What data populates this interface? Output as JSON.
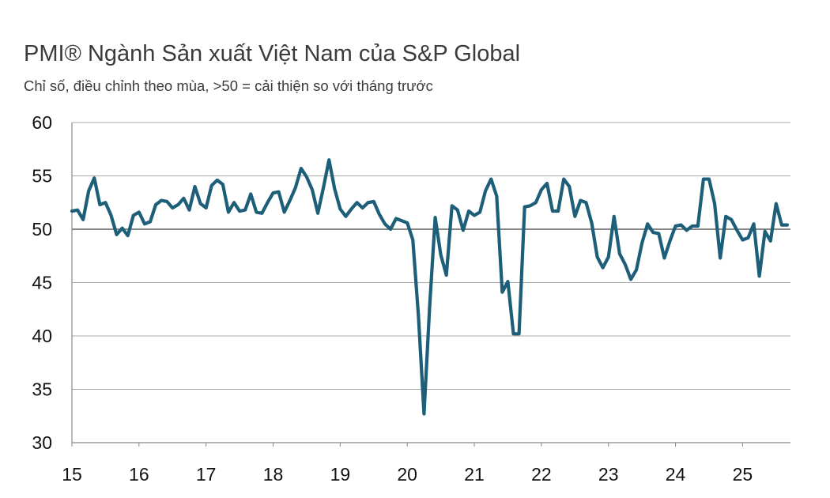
{
  "chart_data": {
    "type": "line",
    "title": "PMI® Ngành Sản xuất Việt Nam của S&P Global",
    "subtitle": "Chỉ số, điều chỉnh theo mùa, >50 = cải thiện so với tháng trước",
    "xlabel": "",
    "ylabel": "",
    "ylim": [
      30,
      60
    ],
    "yticks": [
      "60",
      "55",
      "50",
      "45",
      "40",
      "35",
      "30"
    ],
    "ytick_values": [
      60,
      55,
      50,
      45,
      40,
      35,
      30
    ],
    "xticks": [
      "15",
      "16",
      "17",
      "18",
      "19",
      "20",
      "21",
      "22",
      "23",
      "24",
      "25"
    ],
    "xtick_values": [
      0,
      12,
      24,
      36,
      48,
      60,
      72,
      84,
      96,
      108,
      120
    ],
    "x_start": "2015-01",
    "grid": true,
    "legend": "none",
    "series": [
      {
        "name": "PMI",
        "color": "#1d5e78",
        "values": [
          51.7,
          51.8,
          50.9,
          53.6,
          54.8,
          52.3,
          52.5,
          51.3,
          49.5,
          50.1,
          49.4,
          51.3,
          51.6,
          50.5,
          50.7,
          52.3,
          52.7,
          52.6,
          52.0,
          52.3,
          52.9,
          51.8,
          54.0,
          52.4,
          52.0,
          54.1,
          54.6,
          54.2,
          51.6,
          52.5,
          51.7,
          51.8,
          53.3,
          51.6,
          51.5,
          52.5,
          53.4,
          53.5,
          51.6,
          52.7,
          53.9,
          55.7,
          54.9,
          53.7,
          51.5,
          53.9,
          56.5,
          53.8,
          51.9,
          51.2,
          51.9,
          52.5,
          52.0,
          52.5,
          52.6,
          51.4,
          50.5,
          50.0,
          51.0,
          50.8,
          50.6,
          49.0,
          41.9,
          32.7,
          42.7,
          51.1,
          47.6,
          45.7,
          52.2,
          51.8,
          49.9,
          51.7,
          51.3,
          51.6,
          53.6,
          54.7,
          53.1,
          44.1,
          45.1,
          40.2,
          40.2,
          52.1,
          52.2,
          52.5,
          53.7,
          54.3,
          51.7,
          51.7,
          54.7,
          54.0,
          51.2,
          52.7,
          52.5,
          50.6,
          47.4,
          46.4,
          47.4,
          51.2,
          47.7,
          46.7,
          45.3,
          46.2,
          48.7,
          50.5,
          49.7,
          49.6,
          47.3,
          48.9,
          50.3,
          50.4,
          49.9,
          50.3,
          50.3,
          54.7,
          54.7,
          52.4,
          47.3,
          51.2,
          50.9,
          49.9,
          49.0,
          49.2,
          50.5,
          45.6,
          49.8,
          48.9,
          52.4,
          50.4,
          50.4
        ]
      }
    ]
  }
}
